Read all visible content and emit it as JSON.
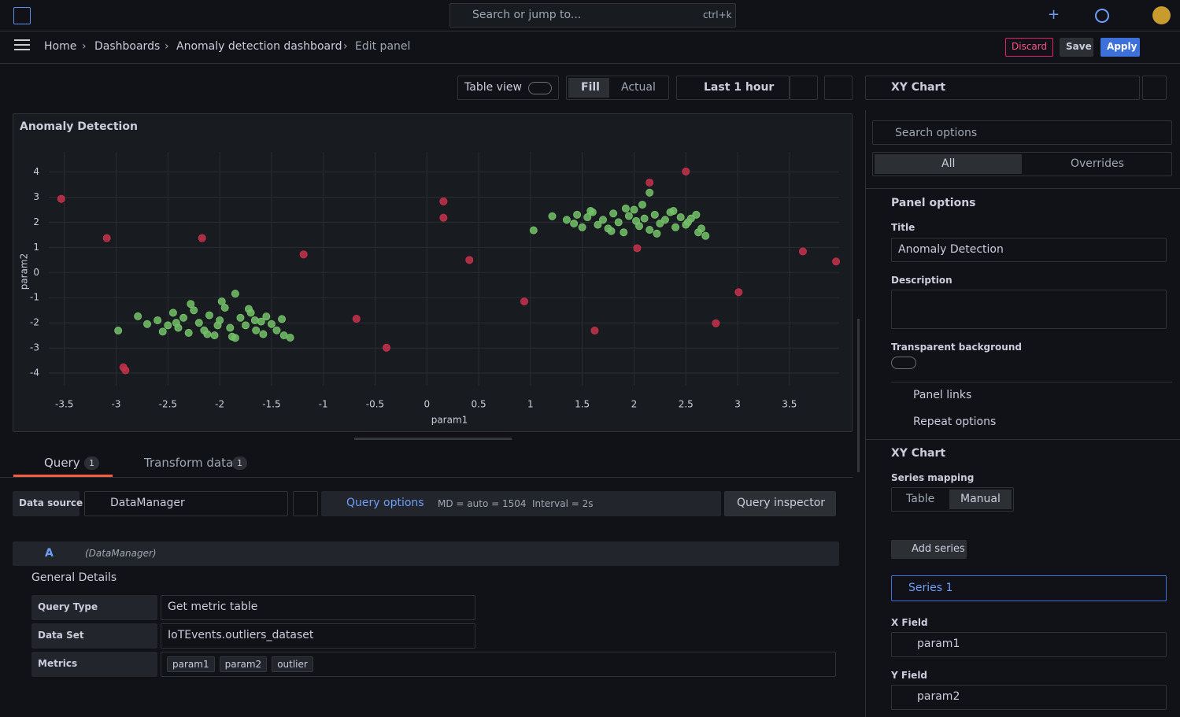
{
  "topbar": {
    "search": "Search or jump to...",
    "shortcut": "ctrl+k"
  },
  "breadcrumb": [
    "Home",
    "Dashboards",
    "Anomaly detection dashboard",
    "Edit panel"
  ],
  "actions": [
    "Discard",
    "Save",
    "Apply"
  ],
  "toolbar": {
    "table_view": "Table view",
    "fill": "Fill",
    "actual": "Actual",
    "time_range": "Last 1 hour"
  },
  "chart_data": {
    "type": "scatter",
    "title": "Anomaly Detection",
    "xlabel": "param1",
    "ylabel": "param2",
    "xlim": [
      -3.65,
      3.98
    ],
    "ylim": [
      -4.5,
      4.8
    ],
    "xticks": [
      -3.5,
      -3,
      -2.5,
      -2,
      -1.5,
      -1,
      -0.5,
      0,
      0.5,
      1,
      1.5,
      2,
      2.5,
      3,
      3.5
    ],
    "yticks": [
      -4,
      -3,
      -2,
      -1,
      0,
      1,
      2,
      3,
      4
    ],
    "grid": true,
    "series": [
      {
        "color": "#73bf69",
        "x": [
          -2.98,
          -2.79,
          -1.85,
          -1.32,
          -2.6,
          -2.5,
          -2.45,
          -2.4,
          -2.35,
          -2.3,
          -2.25,
          -2.2,
          -2.15,
          -2.1,
          -2.05,
          -2.0,
          -1.95,
          -1.9,
          -1.85,
          -1.8,
          -1.75,
          -1.7,
          -1.65,
          -1.6,
          -1.55,
          -1.5,
          -1.45,
          -1.4,
          -2.7,
          -2.55,
          -2.28,
          -2.12,
          -1.98,
          -1.88,
          -1.72,
          -1.58,
          -1.38,
          -2.42,
          -2.02,
          -1.66
        ],
        "values": [
          -2.31,
          -1.74,
          -0.84,
          -2.59,
          -1.9,
          -2.1,
          -1.6,
          -2.2,
          -1.8,
          -2.4,
          -1.5,
          -2.0,
          -2.3,
          -1.7,
          -2.5,
          -1.9,
          -1.4,
          -2.2,
          -2.6,
          -1.8,
          -2.1,
          -1.6,
          -2.3,
          -1.95,
          -1.75,
          -2.05,
          -2.3,
          -1.85,
          -2.05,
          -2.35,
          -1.25,
          -2.45,
          -1.15,
          -2.55,
          -1.45,
          -2.45,
          -2.5,
          -2.0,
          -2.1,
          -1.9
        ]
      },
      {
        "color": "#73bf69",
        "x": [
          1.03,
          1.21,
          2.15,
          2.69,
          1.35,
          1.45,
          1.5,
          1.55,
          1.6,
          1.65,
          1.7,
          1.75,
          1.8,
          1.85,
          1.9,
          1.95,
          2.0,
          2.05,
          2.1,
          2.15,
          2.2,
          2.25,
          2.3,
          2.35,
          2.4,
          2.45,
          2.5,
          2.55,
          2.6,
          2.65,
          1.42,
          1.58,
          1.78,
          1.92,
          2.08,
          2.22,
          2.38,
          2.52,
          2.62,
          2.02
        ],
        "values": [
          1.68,
          2.24,
          3.18,
          1.46,
          2.1,
          2.3,
          1.8,
          2.2,
          2.4,
          1.9,
          2.1,
          1.75,
          2.35,
          2.0,
          1.6,
          2.25,
          2.5,
          1.85,
          2.15,
          1.7,
          2.3,
          1.95,
          2.1,
          2.4,
          1.8,
          2.2,
          1.9,
          2.15,
          2.3,
          1.75,
          1.95,
          2.45,
          1.65,
          2.55,
          2.7,
          1.55,
          2.45,
          2.0,
          1.6,
          2.05
        ]
      },
      {
        "color": "#c4314b",
        "x": [
          -3.53,
          -3.09,
          -2.17,
          -1.19,
          -2.93,
          -2.91,
          -0.68,
          -0.39,
          0.16,
          0.16,
          0.41,
          0.94,
          1.62,
          2.03,
          2.15,
          2.5,
          3.01,
          2.79,
          3.63,
          3.95
        ],
        "values": [
          2.93,
          1.37,
          1.37,
          0.72,
          -3.77,
          -3.89,
          -1.84,
          -2.99,
          2.83,
          2.18,
          0.5,
          -1.15,
          -2.31,
          0.97,
          3.58,
          4.02,
          -0.78,
          -2.02,
          0.84,
          0.44
        ]
      }
    ]
  },
  "query_tabs": [
    {
      "label": "Query",
      "count": 1
    },
    {
      "label": "Transform data",
      "count": 1
    }
  ],
  "query": {
    "data_source_label": "Data source",
    "data_source": "DataManager",
    "query_options": "Query options",
    "md": "MD = auto = 1504",
    "interval": "Interval = 2s",
    "inspector": "Query inspector",
    "ref_id": "A",
    "ref_source": "(DataManager)",
    "section": "General Details",
    "fields": [
      [
        "Query Type",
        "Get metric table"
      ],
      [
        "Data Set",
        "IoTEvents.outliers_dataset"
      ]
    ],
    "metrics_label": "Metrics",
    "metrics": [
      "param1",
      "param2",
      "outlier"
    ]
  },
  "options": {
    "viz": "XY Chart",
    "search": "Search options",
    "tabs": [
      "All",
      "Overrides"
    ],
    "panel_options": "Panel options",
    "title_label": "Title",
    "title_value": "Anomaly Detection",
    "description_label": "Description",
    "transparent_label": "Transparent background",
    "panel_links": "Panel links",
    "repeat_options": "Repeat options",
    "xy_section": "XY Chart",
    "series_mapping": "Series mapping",
    "mapping": [
      "Table",
      "Manual"
    ],
    "add_series": "Add series",
    "series1": "Series 1",
    "x_field_label": "X Field",
    "x_field": "param1",
    "y_field_label": "Y Field",
    "y_field": "param2"
  }
}
